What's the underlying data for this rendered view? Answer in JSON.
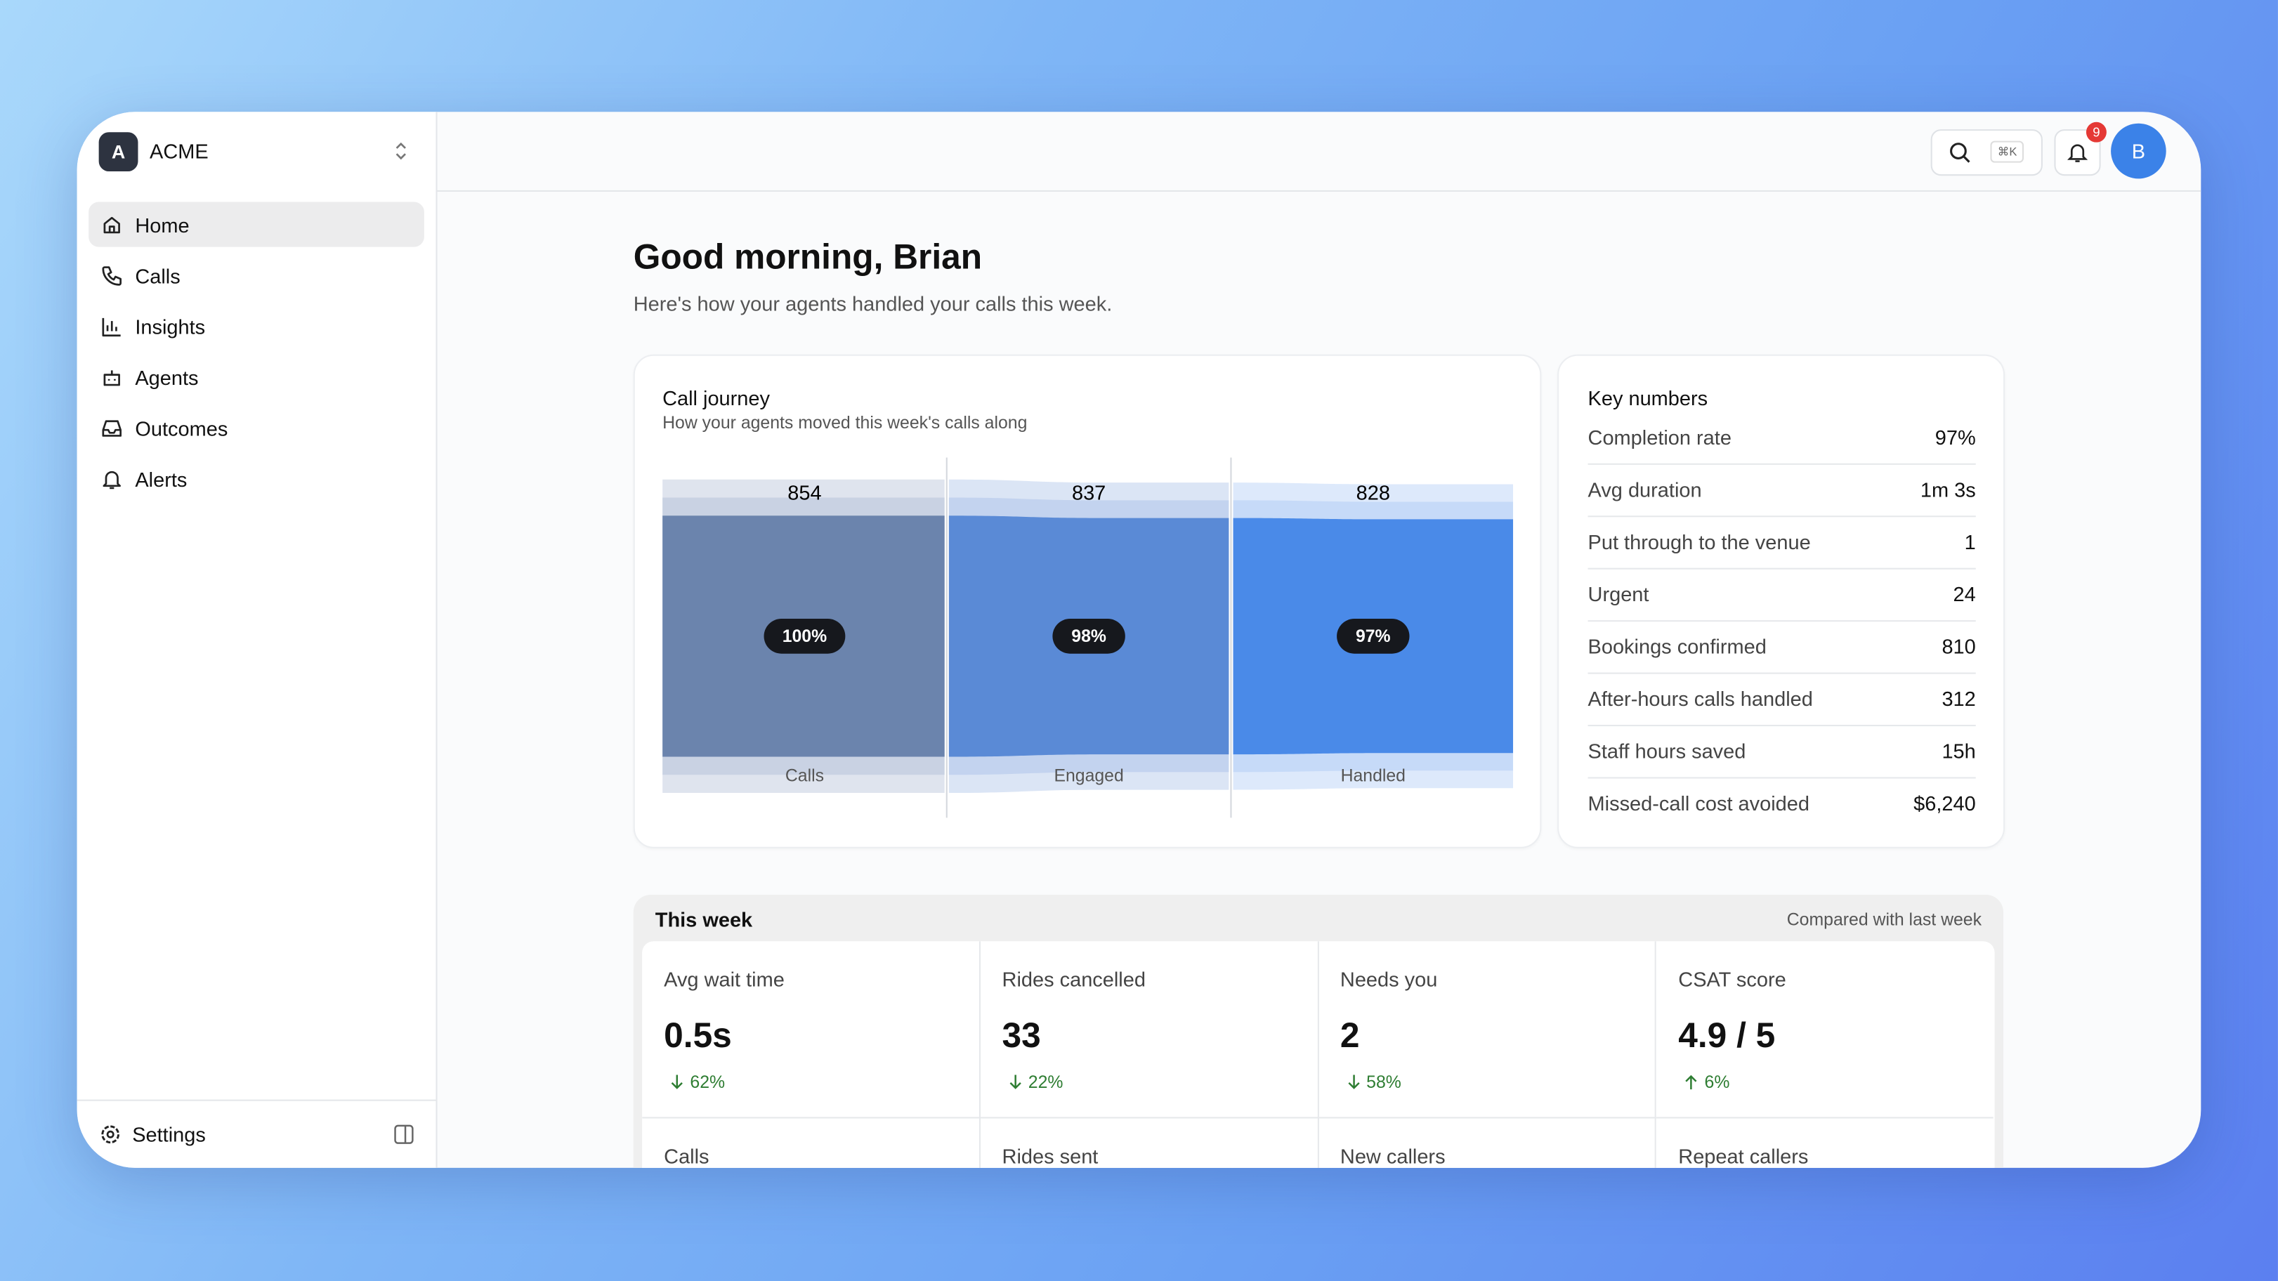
{
  "workspace": {
    "initial": "A",
    "name": "ACME"
  },
  "nav": [
    "Home",
    "Calls",
    "Insights",
    "Agents",
    "Outcomes",
    "Alerts"
  ],
  "settings": "Settings",
  "header": {
    "shortcut": "⌘K",
    "notifications": "9",
    "avatar": "B"
  },
  "greeting": {
    "title": "Good morning, Brian",
    "subtitle": "Here's how your agents handled your calls this week."
  },
  "call_journey": {
    "title": "Call journey",
    "subtitle": "How your agents moved this week's calls along",
    "stages": [
      {
        "label": "Calls",
        "count": 854,
        "share": 100,
        "share_label": "100%"
      },
      {
        "label": "Engaged",
        "count": 837,
        "share": 98,
        "share_label": "98%"
      },
      {
        "label": "Handled",
        "count": 828,
        "share": 97,
        "share_label": "97%"
      }
    ]
  },
  "key_numbers": {
    "title": "Key numbers",
    "rows": [
      [
        "Completion rate",
        "97%"
      ],
      [
        "Avg duration",
        "1m 3s"
      ],
      [
        "Put through to the venue",
        "1"
      ],
      [
        "Urgent",
        "24"
      ],
      [
        "Bookings confirmed",
        "810"
      ],
      [
        "After-hours calls handled",
        "312"
      ],
      [
        "Staff hours saved",
        "15h"
      ],
      [
        "Missed-call cost avoided",
        "$6,240"
      ]
    ]
  },
  "this_week": {
    "title": "This week",
    "note": "Compared with last week",
    "tiles": [
      {
        "label": "Avg wait time",
        "value": "0.5s",
        "change": "62%",
        "direction": "down"
      },
      {
        "label": "Rides cancelled",
        "value": "33",
        "change": "22%",
        "direction": "down"
      },
      {
        "label": "Needs you",
        "value": "2",
        "change": "58%",
        "direction": "down"
      },
      {
        "label": "CSAT score",
        "value": "4.9 / 5",
        "change": "6%",
        "direction": "up"
      }
    ],
    "more": [
      "Calls",
      "Rides sent",
      "New callers",
      "Repeat callers"
    ]
  }
}
